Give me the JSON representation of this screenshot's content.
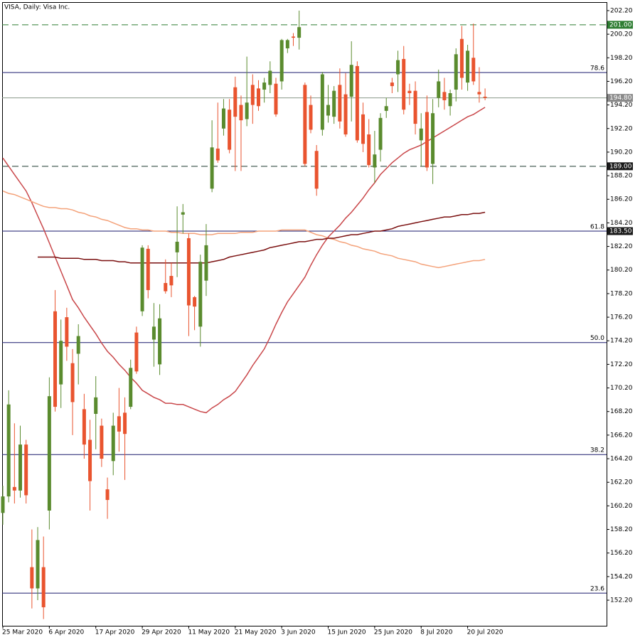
{
  "chart_data": {
    "type": "candlestick",
    "title": "VISA, Daily:  Visa Inc.",
    "categories": [
      "25 Mar 2020",
      null,
      null,
      null,
      null,
      null,
      null,
      null,
      "6 Apr 2020",
      null,
      null,
      null,
      null,
      null,
      null,
      null,
      "17 Apr 2020",
      null,
      null,
      null,
      null,
      null,
      null,
      null,
      "29 Apr 2020",
      null,
      null,
      null,
      null,
      null,
      null,
      null,
      "11 May 2020",
      null,
      null,
      null,
      null,
      null,
      null,
      null,
      "21 May 2020",
      null,
      null,
      null,
      null,
      null,
      null,
      null,
      "3 Jun 2020",
      null,
      null,
      null,
      null,
      null,
      null,
      null,
      "15 Jun 2020",
      null,
      null,
      null,
      null,
      null,
      null,
      null,
      "25 Jun 2020",
      null,
      null,
      null,
      null,
      null,
      null,
      null,
      "8 Jul 2020",
      null,
      null,
      null,
      null,
      null,
      null,
      null,
      "20 Jul 2020",
      null,
      null,
      null
    ],
    "open": [
      159.6,
      161.0,
      161.8,
      161.5,
      165.4,
      155.0,
      153.2,
      155.0,
      159.8,
      176.7,
      170.5,
      176.2,
      172.3,
      173.1,
      168.4,
      165.8,
      168.0,
      167.0,
      161.6,
      164.0,
      167.8,
      168.1,
      168.6,
      174.9,
      176.7,
      182.0,
      174.3,
      172.2,
      179.1,
      179.7,
      181.7,
      184.9,
      182.9,
      177.9,
      175.4,
      179.3,
      187.1,
      190.5,
      192.2,
      193.8,
      195.7,
      194.2,
      193.0,
      195.9,
      195.6,
      195.5,
      195.9,
      196.0,
      196.2,
      199.0,
      200.0,
      199.9,
      195.9,
      194.2,
      190.3,
      192.1,
      193.3,
      193.2,
      195.9,
      195.1,
      194.9,
      197.5,
      193.4,
      191.7,
      188.9,
      190.4,
      193.7,
      196.1,
      196.8,
      198.1,
      195.4,
      195.4,
      191.2,
      193.6,
      189.2,
      194.8,
      195.3,
      194.1,
      195.5,
      199.8,
      196.1,
      198.2,
      195.3,
      194.9
    ],
    "high": [
      161.9,
      170.0,
      167.2,
      167.0,
      165.8,
      158.2,
      158.4,
      157.6,
      171.1,
      178.5,
      176.0,
      177.0,
      173.5,
      175.6,
      169.7,
      167.5,
      171.2,
      167.6,
      162.6,
      168.1,
      170.2,
      169.4,
      172.6,
      175.4,
      182.3,
      182.3,
      177.4,
      177.3,
      181.1,
      180.8,
      185.6,
      185.8,
      183.3,
      178.0,
      181.5,
      184.1,
      192.9,
      194.4,
      194.7,
      194.7,
      196.6,
      195.0,
      198.3,
      196.8,
      196.3,
      196.5,
      197.9,
      196.5,
      199.8,
      199.8,
      200.3,
      202.2,
      196.1,
      195.0,
      190.8,
      197.0,
      195.9,
      195.8,
      197.3,
      196.9,
      199.6,
      197.9,
      194.4,
      193.0,
      192.0,
      193.5,
      194.8,
      196.5,
      198.8,
      199.2,
      196.0,
      196.2,
      193.5,
      195.0,
      194.7,
      197.2,
      196.5,
      195.5,
      199.0,
      200.9,
      199.3,
      201.1,
      197.4,
      195.6
    ],
    "low": [
      158.6,
      160.5,
      160.4,
      160.9,
      160.4,
      151.5,
      152.2,
      150.6,
      158.2,
      168.2,
      168.5,
      172.5,
      166.2,
      170.5,
      164.2,
      159.8,
      165.0,
      163.5,
      159.1,
      162.8,
      164.8,
      162.4,
      168.4,
      171.4,
      176.3,
      177.8,
      172.0,
      171.3,
      178.2,
      177.9,
      179.6,
      183.3,
      174.6,
      175.1,
      173.7,
      178.0,
      186.8,
      189.3,
      191.6,
      190.1,
      188.6,
      188.6,
      192.4,
      192.6,
      193.7,
      194.4,
      195.2,
      193.2,
      195.5,
      198.6,
      199.2,
      198.9,
      189.0,
      191.8,
      186.5,
      191.6,
      192.7,
      192.6,
      192.2,
      191.5,
      192.8,
      191.0,
      190.2,
      188.9,
      187.6,
      189.4,
      193.1,
      195.2,
      195.3,
      193.4,
      194.2,
      191.7,
      189.0,
      188.6,
      187.5,
      194.0,
      193.8,
      193.3,
      194.5,
      195.5,
      195.4,
      195.9,
      194.4,
      194.6
    ],
    "close": [
      161.0,
      168.8,
      161.5,
      165.4,
      161.1,
      153.2,
      157.3,
      151.6,
      169.5,
      168.6,
      174.2,
      173.7,
      169.0,
      174.6,
      165.4,
      162.3,
      169.4,
      164.2,
      160.7,
      167.0,
      166.5,
      166.3,
      171.9,
      171.6,
      182.1,
      178.5,
      175.4,
      176.1,
      178.4,
      178.9,
      182.6,
      185.1,
      177.2,
      177.1,
      180.9,
      182.3,
      190.6,
      189.5,
      193.9,
      190.4,
      193.2,
      192.9,
      194.4,
      194.2,
      194.1,
      196.1,
      197.1,
      193.4,
      199.7,
      199.7,
      199.9,
      200.8,
      189.2,
      192.1,
      187.1,
      196.8,
      194.2,
      195.4,
      192.8,
      191.7,
      197.6,
      191.2,
      190.9,
      189.1,
      190.0,
      193.1,
      194.1,
      195.8,
      198.0,
      193.8,
      195.2,
      192.6,
      192.2,
      188.9,
      193.5,
      196.2,
      194.6,
      195.2,
      198.5,
      196.5,
      198.8,
      196.2,
      195.1,
      194.8
    ],
    "up_color": "#5a8b2e",
    "down_color": "#e9542f",
    "lines": [
      {
        "color": "#c9474a",
        "values": [
          189.7,
          189.0,
          188.3,
          187.6,
          186.9,
          185.9,
          184.8,
          183.7,
          182.5,
          181.3,
          180.1,
          178.9,
          177.7,
          177.0,
          176.2,
          175.5,
          174.8,
          174.0,
          173.3,
          172.8,
          172.2,
          171.7,
          171.1,
          170.6,
          170.0,
          169.7,
          169.4,
          169.2,
          168.9,
          168.9,
          168.8,
          168.8,
          168.6,
          168.4,
          168.2,
          168.1,
          168.5,
          168.8,
          169.2,
          169.5,
          169.9,
          170.6,
          171.3,
          172.1,
          172.8,
          173.5,
          174.5,
          175.6,
          176.6,
          177.5,
          178.2,
          178.9,
          179.6,
          180.6,
          181.5,
          182.3,
          183.0,
          183.5,
          184.0,
          184.6,
          185.1,
          185.7,
          186.3,
          187.0,
          187.6,
          188.3,
          188.8,
          189.3,
          189.7,
          190.1,
          190.4,
          190.6,
          190.8,
          191.1,
          191.4,
          191.7,
          192.0,
          192.3,
          192.6,
          192.9,
          193.2,
          193.4,
          193.7,
          194.0
        ]
      },
      {
        "color": "#f4a27a",
        "values": [
          186.9,
          186.7,
          186.6,
          186.4,
          186.2,
          186.0,
          185.8,
          185.6,
          185.5,
          185.5,
          185.4,
          185.4,
          185.3,
          185.1,
          185.0,
          184.8,
          184.7,
          184.5,
          184.4,
          184.2,
          184.0,
          183.8,
          183.7,
          183.7,
          183.6,
          183.6,
          183.5,
          183.5,
          183.5,
          183.4,
          183.4,
          183.3,
          183.3,
          183.3,
          183.2,
          183.2,
          183.2,
          183.3,
          183.3,
          183.3,
          183.3,
          183.4,
          183.4,
          183.4,
          183.5,
          183.5,
          183.5,
          183.5,
          183.6,
          183.6,
          183.6,
          183.6,
          183.6,
          183.4,
          183.2,
          183.1,
          182.9,
          182.8,
          182.6,
          182.5,
          182.3,
          182.2,
          182.0,
          181.9,
          181.8,
          181.6,
          181.5,
          181.4,
          181.2,
          181.1,
          181.0,
          180.9,
          180.7,
          180.6,
          180.5,
          180.4,
          180.5,
          180.6,
          180.7,
          180.8,
          180.9,
          181.0,
          181.0,
          181.1
        ]
      },
      {
        "color": "#7a0f0f",
        "values": [
          null,
          null,
          null,
          null,
          null,
          null,
          181.3,
          181.3,
          181.3,
          181.3,
          181.2,
          181.2,
          181.2,
          181.2,
          181.1,
          181.1,
          181.1,
          181.0,
          181.0,
          181.0,
          180.9,
          180.9,
          180.8,
          180.8,
          180.8,
          180.8,
          180.8,
          180.8,
          180.8,
          180.8,
          180.8,
          180.8,
          180.8,
          180.8,
          180.8,
          180.8,
          180.9,
          181.0,
          181.1,
          181.3,
          181.4,
          181.5,
          181.6,
          181.7,
          181.8,
          181.9,
          182.1,
          182.2,
          182.3,
          182.4,
          182.5,
          182.6,
          182.6,
          182.7,
          182.8,
          182.8,
          182.9,
          182.9,
          183.0,
          183.1,
          183.2,
          183.2,
          183.3,
          183.4,
          183.5,
          183.5,
          183.6,
          183.7,
          183.9,
          184.0,
          184.1,
          184.2,
          184.3,
          184.4,
          184.5,
          184.6,
          184.7,
          184.7,
          184.8,
          184.9,
          184.9,
          185.0,
          185.0,
          185.1
        ]
      }
    ],
    "levels": [
      {
        "value": 201,
        "label": "201.00",
        "style": "dashed",
        "color": "#2e7d32",
        "box_color": "#2e7d32"
      },
      {
        "value": 194.8,
        "label": "194.80",
        "style": "solid",
        "color": "#8a9a8a",
        "box_color": "#8a8a8a"
      },
      {
        "value": 189,
        "label": "189.00",
        "style": "dashed",
        "color": "#1e3a2e",
        "box_color": "#1a1a1a"
      },
      {
        "value": 183.5,
        "label": "183.50",
        "style": "solid",
        "color": "#1a1a6e",
        "box_color": "#1a1a1a"
      }
    ],
    "fib_levels": [
      {
        "name": "78.6",
        "value": 196.95
      },
      {
        "name": "61.8",
        "value": 183.5
      },
      {
        "name": "50.0",
        "value": 174.05
      },
      {
        "name": "38.2",
        "value": 164.55
      },
      {
        "name": "23.6",
        "value": 152.8
      }
    ],
    "fib_color": "#1a1a6e",
    "ylim": [
      150.03,
      202.92
    ],
    "yticks": [
      {
        "value": 152.2,
        "label": "152.20"
      },
      {
        "value": 154.2,
        "label": "154.20"
      },
      {
        "value": 156.2,
        "label": "156.20"
      },
      {
        "value": 158.2,
        "label": "158.20"
      },
      {
        "value": 160.2,
        "label": "160.20"
      },
      {
        "value": 162.2,
        "label": "162.20"
      },
      {
        "value": 164.2,
        "label": "164.20"
      },
      {
        "value": 166.2,
        "label": "166.20"
      },
      {
        "value": 168.2,
        "label": "168.20"
      },
      {
        "value": 170.2,
        "label": "170.20"
      },
      {
        "value": 172.2,
        "label": "172.20"
      },
      {
        "value": 174.2,
        "label": "174.20"
      },
      {
        "value": 176.2,
        "label": "176.20"
      },
      {
        "value": 178.2,
        "label": "178.20"
      },
      {
        "value": 180.2,
        "label": "180.20"
      },
      {
        "value": 182.2,
        "label": "182.20"
      },
      {
        "value": 184.2,
        "label": "184.20"
      },
      {
        "value": 186.2,
        "label": "186.20"
      },
      {
        "value": 188.2,
        "label": "188.20"
      },
      {
        "value": 190.2,
        "label": "190.20"
      },
      {
        "value": 192.2,
        "label": "192.20"
      },
      {
        "value": 194.2,
        "label": "194.20"
      },
      {
        "value": 196.2,
        "label": "196.20"
      },
      {
        "value": 198.2,
        "label": "198.20"
      },
      {
        "value": 200.2,
        "label": "200.20"
      },
      {
        "value": 202.2,
        "label": "202.20"
      }
    ]
  }
}
